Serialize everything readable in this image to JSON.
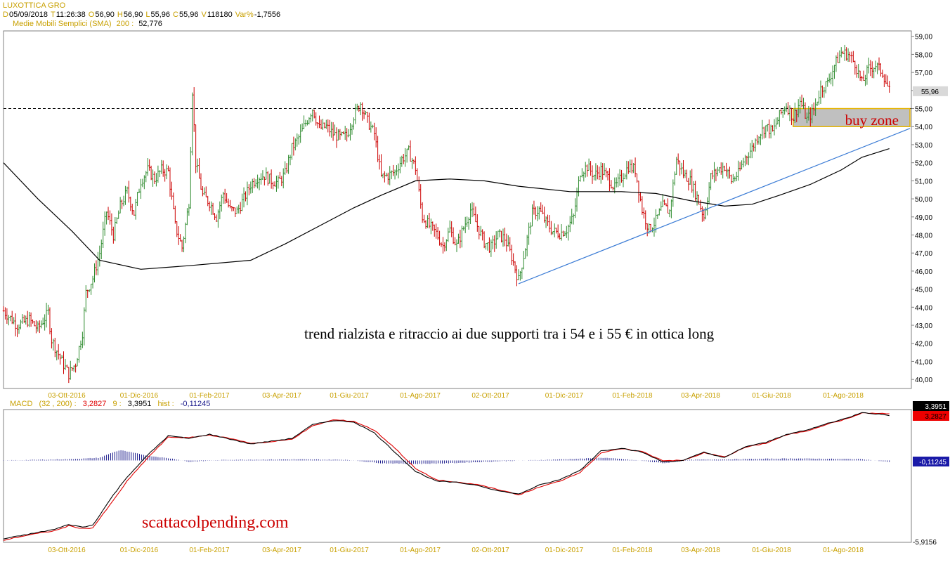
{
  "header": {
    "symbol": "LUXOTTICA GRO",
    "quote": [
      {
        "k": "D",
        "v": "05/09/2018"
      },
      {
        "k": "T",
        "v": "11:26:38"
      },
      {
        "k": "O",
        "v": "56,90"
      },
      {
        "k": "H",
        "v": "56,90"
      },
      {
        "k": "L",
        "v": "55,96"
      },
      {
        "k": "C",
        "v": "55,96"
      },
      {
        "k": "V",
        "v": "118180"
      },
      {
        "k": "Var%",
        "v": "-1,7556"
      }
    ],
    "sma_label": "Medie Mobili Semplici (SMA)",
    "sma_period": "200 :",
    "sma_value": "52,776"
  },
  "macd_header": {
    "label": "MACD",
    "params": "(32 , 200) :",
    "macd_value": "3,2827",
    "signal_label": "9 :",
    "signal_value": "3,3951",
    "hist_label": "hist :",
    "hist_value": "-0,11245"
  },
  "annotations": {
    "buy_zone": "buy zone",
    "comment": "trend rialzista e ritraccio ai due supporti tra i 54 e i 55 € in ottica long",
    "watermark": "scattacolpending.com"
  },
  "colors": {
    "up": "#2e8b2e",
    "down": "#cc0000",
    "sma": "#000000",
    "trendline": "#3a7bd5",
    "buy_zone_fill": "#c0c0c0",
    "buy_zone_border": "#e6b400",
    "macd_line": "#000000",
    "signal_line": "#e00000",
    "histogram": "#1a1a8c",
    "axis_text": "#c8a000"
  },
  "chart_data": [
    {
      "type": "candlestick",
      "title": "LUXOTTICA GRO",
      "x_tick_labels": [
        "03-Ott-2016",
        "01-Dic-2016",
        "01-Feb-2017",
        "03-Apr-2017",
        "01-Giu-2017",
        "01-Ago-2017",
        "02-Ott-2017",
        "01-Dic-2017",
        "01-Feb-2018",
        "03-Apr-2018",
        "01-Giu-2018",
        "01-Ago-2018"
      ],
      "y_tick_labels": [
        "40,00",
        "41,00",
        "42,00",
        "43,00",
        "44,00",
        "45,00",
        "46,00",
        "47,00",
        "48,00",
        "49,00",
        "50,00",
        "51,00",
        "52,00",
        "53,00",
        "54,00",
        "55,00",
        "56,00",
        "57,00",
        "58,00",
        "59,00"
      ],
      "ylim": [
        39.5,
        59.3
      ],
      "last_price_label": "55,96",
      "price_path": [
        [
          0,
          43.8
        ],
        [
          8,
          43.0
        ],
        [
          15,
          43.3
        ],
        [
          20,
          42.8
        ],
        [
          26,
          43.7
        ],
        [
          28,
          42.2
        ],
        [
          34,
          41.0
        ],
        [
          38,
          40.3
        ],
        [
          42,
          40.9
        ],
        [
          46,
          42.6
        ],
        [
          48,
          44.8
        ],
        [
          52,
          45.6
        ],
        [
          56,
          47.0
        ],
        [
          60,
          49.3
        ],
        [
          64,
          48.0
        ],
        [
          68,
          49.6
        ],
        [
          72,
          50.4
        ],
        [
          76,
          49.2
        ],
        [
          80,
          51.0
        ],
        [
          84,
          51.6
        ],
        [
          88,
          51.1
        ],
        [
          92,
          51.6
        ],
        [
          96,
          51.5
        ],
        [
          100,
          48.5
        ],
        [
          104,
          47.3
        ],
        [
          108,
          49.8
        ],
        [
          110,
          56.0
        ],
        [
          112,
          52.0
        ],
        [
          116,
          50.2
        ],
        [
          120,
          49.8
        ],
        [
          124,
          49.0
        ],
        [
          128,
          50.3
        ],
        [
          132,
          49.4
        ],
        [
          136,
          49.3
        ],
        [
          140,
          50.0
        ],
        [
          144,
          50.8
        ],
        [
          148,
          51.2
        ],
        [
          152,
          51.3
        ],
        [
          156,
          51.0
        ],
        [
          160,
          50.9
        ],
        [
          164,
          51.4
        ],
        [
          168,
          52.8
        ],
        [
          172,
          53.4
        ],
        [
          176,
          54.2
        ],
        [
          180,
          55.0
        ],
        [
          184,
          53.9
        ],
        [
          188,
          54.0
        ],
        [
          192,
          53.6
        ],
        [
          196,
          53.4
        ],
        [
          200,
          53.5
        ],
        [
          204,
          54.6
        ],
        [
          208,
          55.3
        ],
        [
          212,
          54.3
        ],
        [
          216,
          53.6
        ],
        [
          220,
          51.2
        ],
        [
          224,
          51.3
        ],
        [
          228,
          51.5
        ],
        [
          232,
          52.2
        ],
        [
          236,
          52.6
        ],
        [
          240,
          51.7
        ],
        [
          244,
          49.0
        ],
        [
          248,
          48.5
        ],
        [
          252,
          48.1
        ],
        [
          256,
          47.4
        ],
        [
          260,
          48.3
        ],
        [
          264,
          47.4
        ],
        [
          268,
          48.4
        ],
        [
          272,
          49.4
        ],
        [
          276,
          48.5
        ],
        [
          280,
          47.6
        ],
        [
          284,
          47.3
        ],
        [
          288,
          48.0
        ],
        [
          292,
          47.8
        ],
        [
          296,
          46.8
        ],
        [
          300,
          45.5
        ],
        [
          304,
          47.3
        ],
        [
          308,
          49.2
        ],
        [
          312,
          49.4
        ],
        [
          316,
          48.7
        ],
        [
          320,
          48.2
        ],
        [
          324,
          48.1
        ],
        [
          328,
          48.3
        ],
        [
          332,
          49.0
        ],
        [
          336,
          51.5
        ],
        [
          340,
          51.8
        ],
        [
          344,
          51.3
        ],
        [
          348,
          51.6
        ],
        [
          352,
          51.2
        ],
        [
          356,
          50.6
        ],
        [
          360,
          51.2
        ],
        [
          364,
          51.8
        ],
        [
          368,
          51.6
        ],
        [
          372,
          49.4
        ],
        [
          376,
          48.3
        ],
        [
          380,
          48.8
        ],
        [
          384,
          49.6
        ],
        [
          388,
          49.3
        ],
        [
          392,
          52.2
        ],
        [
          396,
          51.4
        ],
        [
          400,
          51.0
        ],
        [
          404,
          50.1
        ],
        [
          408,
          49.0
        ],
        [
          412,
          51.2
        ],
        [
          416,
          51.6
        ],
        [
          420,
          51.8
        ],
        [
          424,
          51.0
        ],
        [
          428,
          51.4
        ],
        [
          432,
          52.3
        ],
        [
          436,
          52.8
        ],
        [
          440,
          53.6
        ],
        [
          444,
          54.0
        ],
        [
          448,
          53.7
        ],
        [
          452,
          54.6
        ],
        [
          456,
          55.2
        ],
        [
          460,
          54.5
        ],
        [
          464,
          55.4
        ],
        [
          468,
          54.4
        ],
        [
          472,
          54.9
        ],
        [
          476,
          56.1
        ],
        [
          480,
          56.4
        ],
        [
          484,
          57.4
        ],
        [
          488,
          58.1
        ],
        [
          492,
          58.0
        ],
        [
          496,
          57.5
        ],
        [
          500,
          56.4
        ],
        [
          504,
          57.2
        ],
        [
          508,
          57.4
        ],
        [
          512,
          57.0
        ],
        [
          516,
          55.96
        ]
      ],
      "sma": [
        [
          0,
          52.0
        ],
        [
          20,
          50.0
        ],
        [
          40,
          48.2
        ],
        [
          56,
          46.6
        ],
        [
          80,
          46.1
        ],
        [
          108,
          46.3
        ],
        [
          144,
          46.6
        ],
        [
          164,
          47.5
        ],
        [
          184,
          48.5
        ],
        [
          204,
          49.5
        ],
        [
          220,
          50.2
        ],
        [
          240,
          51.0
        ],
        [
          260,
          51.1
        ],
        [
          280,
          51.0
        ],
        [
          300,
          50.7
        ],
        [
          330,
          50.4
        ],
        [
          360,
          50.4
        ],
        [
          380,
          50.3
        ],
        [
          400,
          49.9
        ],
        [
          420,
          49.6
        ],
        [
          436,
          49.7
        ],
        [
          452,
          50.2
        ],
        [
          470,
          50.8
        ],
        [
          488,
          51.6
        ],
        [
          500,
          52.3
        ],
        [
          516,
          52.78
        ]
      ],
      "trendline": {
        "from": [
          300,
          45.3
        ],
        "to": [
          528,
          53.9
        ]
      },
      "resistance_level": 55.0,
      "buy_zone": {
        "x_from": 460,
        "x_to": 528,
        "y_from": 54.0,
        "y_to": 55.0
      }
    },
    {
      "type": "macd",
      "x_tick_labels": [
        "03-Ott-2016",
        "01-Dic-2016",
        "01-Feb-2017",
        "03-Apr-2017",
        "01-Giu-2017",
        "01-Ago-2017",
        "02-Ott-2017",
        "01-Dic-2017",
        "01-Feb-2018",
        "03-Apr-2018",
        "01-Giu-2018",
        "01-Ago-2018"
      ],
      "y_tick_labels": [
        "-5,9156"
      ],
      "right_labels": [
        "3,3951",
        "3,2827",
        "-0,11245"
      ],
      "ylim": [
        -5.95,
        3.7
      ],
      "macd": [
        [
          0,
          -5.7
        ],
        [
          15,
          -5.35
        ],
        [
          30,
          -5.0
        ],
        [
          38,
          -4.65
        ],
        [
          46,
          -4.85
        ],
        [
          52,
          -4.7
        ],
        [
          64,
          -2.5
        ],
        [
          72,
          -1.2
        ],
        [
          84,
          0.4
        ],
        [
          96,
          1.8
        ],
        [
          108,
          1.6
        ],
        [
          120,
          1.9
        ],
        [
          132,
          1.55
        ],
        [
          144,
          1.2
        ],
        [
          156,
          1.4
        ],
        [
          168,
          1.6
        ],
        [
          180,
          2.6
        ],
        [
          192,
          2.9
        ],
        [
          204,
          2.8
        ],
        [
          216,
          2.0
        ],
        [
          228,
          0.6
        ],
        [
          240,
          -0.8
        ],
        [
          252,
          -1.5
        ],
        [
          264,
          -1.6
        ],
        [
          276,
          -1.8
        ],
        [
          288,
          -2.2
        ],
        [
          300,
          -2.45
        ],
        [
          312,
          -1.8
        ],
        [
          324,
          -1.4
        ],
        [
          336,
          -0.7
        ],
        [
          348,
          0.7
        ],
        [
          360,
          0.9
        ],
        [
          372,
          0.6
        ],
        [
          384,
          -0.1
        ],
        [
          396,
          0.0
        ],
        [
          408,
          0.6
        ],
        [
          420,
          0.2
        ],
        [
          432,
          1.0
        ],
        [
          444,
          1.3
        ],
        [
          456,
          1.9
        ],
        [
          468,
          2.2
        ],
        [
          480,
          2.7
        ],
        [
          492,
          3.1
        ],
        [
          500,
          3.5
        ],
        [
          516,
          3.28
        ]
      ],
      "signal": [
        [
          0,
          -5.8
        ],
        [
          15,
          -5.4
        ],
        [
          30,
          -5.1
        ],
        [
          38,
          -4.75
        ],
        [
          46,
          -4.95
        ],
        [
          52,
          -4.9
        ],
        [
          64,
          -2.9
        ],
        [
          72,
          -1.5
        ],
        [
          84,
          0.2
        ],
        [
          96,
          1.7
        ],
        [
          108,
          1.65
        ],
        [
          120,
          1.85
        ],
        [
          132,
          1.6
        ],
        [
          144,
          1.25
        ],
        [
          156,
          1.35
        ],
        [
          168,
          1.55
        ],
        [
          180,
          2.5
        ],
        [
          192,
          2.95
        ],
        [
          204,
          2.85
        ],
        [
          216,
          2.2
        ],
        [
          228,
          0.9
        ],
        [
          240,
          -0.6
        ],
        [
          252,
          -1.4
        ],
        [
          264,
          -1.6
        ],
        [
          276,
          -1.75
        ],
        [
          288,
          -2.1
        ],
        [
          300,
          -2.5
        ],
        [
          312,
          -1.95
        ],
        [
          324,
          -1.5
        ],
        [
          336,
          -0.85
        ],
        [
          348,
          0.55
        ],
        [
          360,
          0.85
        ],
        [
          372,
          0.65
        ],
        [
          384,
          0.0
        ],
        [
          396,
          0.0
        ],
        [
          408,
          0.55
        ],
        [
          420,
          0.25
        ],
        [
          432,
          0.95
        ],
        [
          444,
          1.25
        ],
        [
          456,
          1.85
        ],
        [
          468,
          2.15
        ],
        [
          480,
          2.65
        ],
        [
          492,
          3.05
        ],
        [
          500,
          3.45
        ],
        [
          516,
          3.3951
        ]
      ],
      "histogram": [
        [
          0,
          0.0
        ],
        [
          20,
          0.05
        ],
        [
          40,
          0.1
        ],
        [
          56,
          0.2
        ],
        [
          64,
          0.6
        ],
        [
          68,
          0.75
        ],
        [
          76,
          0.55
        ],
        [
          84,
          0.35
        ],
        [
          100,
          0.1
        ],
        [
          108,
          -0.1
        ],
        [
          130,
          0.05
        ],
        [
          170,
          0.08
        ],
        [
          200,
          0.05
        ],
        [
          220,
          -0.2
        ],
        [
          240,
          -0.25
        ],
        [
          260,
          -0.2
        ],
        [
          290,
          -0.05
        ],
        [
          330,
          0.1
        ],
        [
          350,
          0.2
        ],
        [
          370,
          0.0
        ],
        [
          385,
          -0.2
        ],
        [
          400,
          0.05
        ],
        [
          430,
          0.1
        ],
        [
          460,
          0.15
        ],
        [
          480,
          0.12
        ],
        [
          500,
          0.1
        ],
        [
          516,
          -0.11245
        ]
      ]
    }
  ]
}
